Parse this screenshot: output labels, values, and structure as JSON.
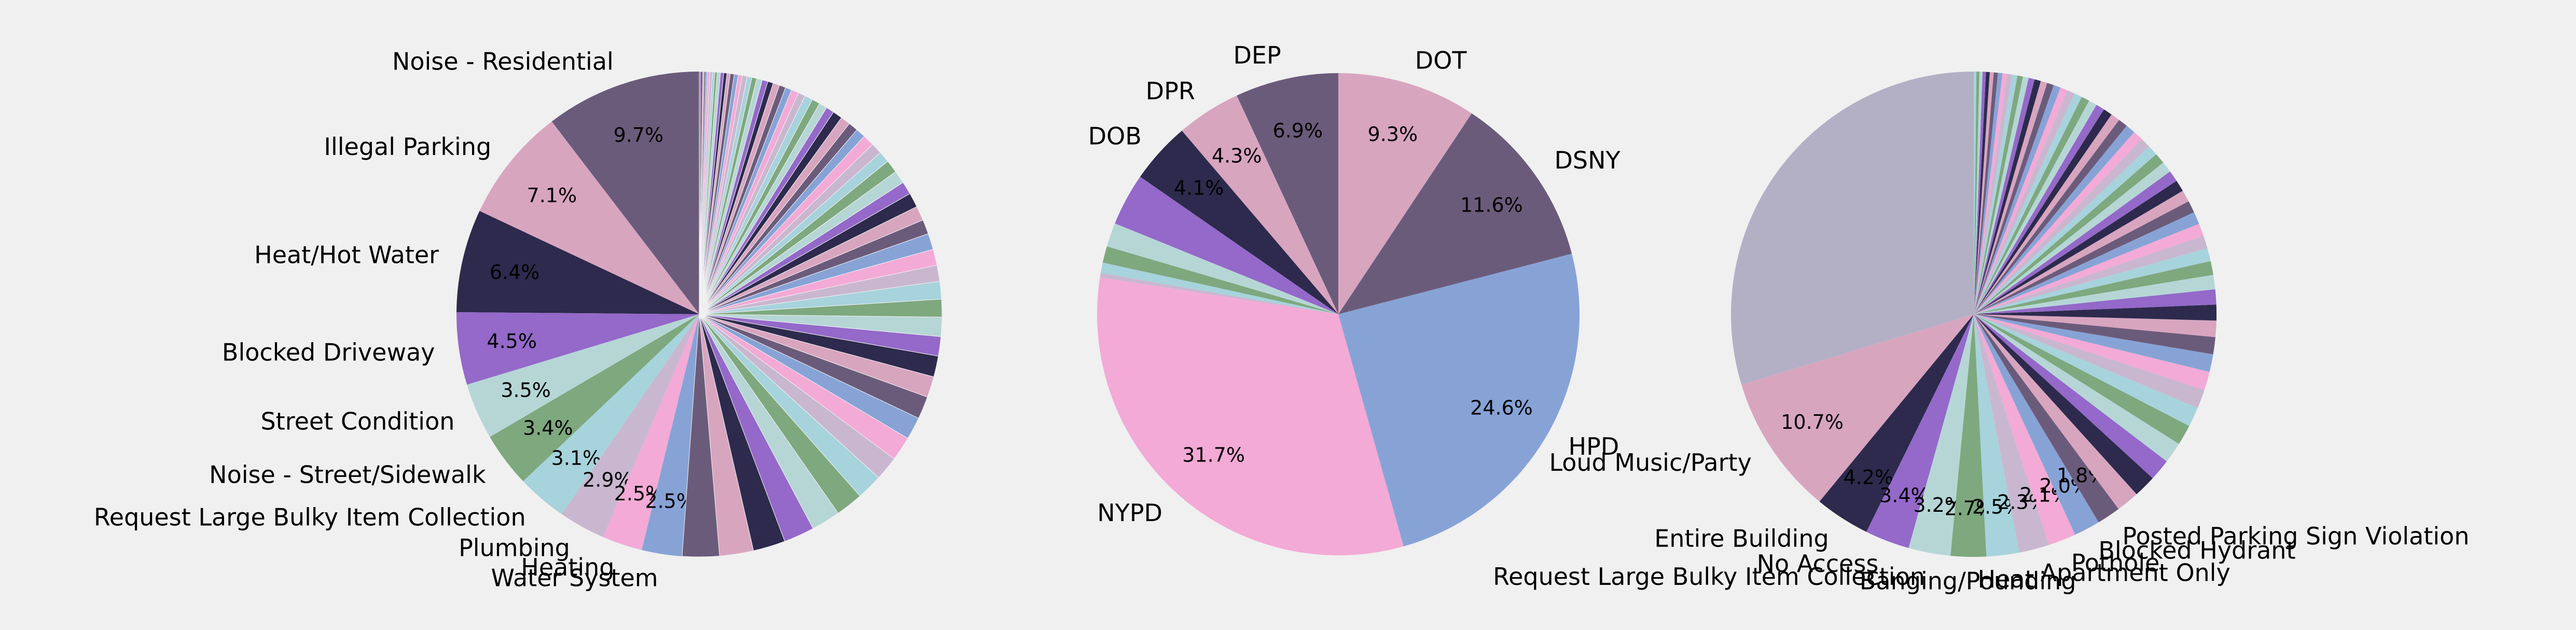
{
  "chart_data": [
    {
      "type": "pie",
      "start_angle_deg": 90,
      "direction": "counterclockwise",
      "labels": [
        "Noise - Residential",
        "Illegal Parking",
        "Heat/Hot Water",
        "Blocked Driveway",
        "Street Condition",
        "Noise - Street/Sidewalk",
        "Request Large Bulky Item Collection",
        "Plumbing",
        "Heating",
        "Water System"
      ],
      "values": [
        9.7,
        7.1,
        6.4,
        4.5,
        3.5,
        3.4,
        3.1,
        2.9,
        2.5,
        2.5
      ],
      "pct_labels": [
        "9.7%",
        "7.1%",
        "6.4%",
        "4.5%",
        "3.5%",
        "3.4%",
        "3.1%",
        "2.9%",
        "2.5%",
        "2.5%"
      ],
      "tail_values": [
        2.3,
        2.1,
        2.0,
        1.9,
        1.8,
        1.7,
        1.6,
        1.5,
        1.5,
        1.4,
        1.4,
        1.3,
        1.3,
        1.2,
        1.2,
        1.1,
        1.1,
        1.0,
        1.0,
        1.0,
        0.9,
        0.9,
        0.9,
        0.8,
        0.8,
        0.8,
        0.7,
        0.7,
        0.7,
        0.6,
        0.6,
        0.6,
        0.6,
        0.5,
        0.5,
        0.5,
        0.5,
        0.45,
        0.45,
        0.4,
        0.4,
        0.4,
        0.35,
        0.35,
        0.35,
        0.3,
        0.3,
        0.3,
        0.25,
        0.25,
        0.25,
        0.2,
        0.2,
        0.2,
        0.2,
        0.15,
        0.15,
        0.15,
        0.15,
        0.1,
        0.1,
        0.1,
        0.1,
        0.1
      ]
    },
    {
      "type": "pie",
      "start_angle_deg": 90,
      "direction": "counterclockwise",
      "labels": [
        "DEP",
        "DPR",
        "DOB",
        "",
        "",
        "",
        "",
        "",
        "NYPD",
        "HPD",
        "DSNY",
        "DOT"
      ],
      "values": [
        6.9,
        4.3,
        4.1,
        3.5,
        1.6,
        1.1,
        0.7,
        0.3,
        31.7,
        24.6,
        11.6,
        9.3
      ],
      "pct_labels": [
        "6.9%",
        "4.3%",
        "4.1%",
        "",
        "",
        "",
        "",
        "",
        "31.7%",
        "24.6%",
        "11.6%",
        "9.3%"
      ],
      "tail_values": []
    },
    {
      "type": "pie",
      "start_angle_deg": 90,
      "direction": "counterclockwise",
      "labels": [
        "Loud Music/Party",
        "Entire Building",
        "No Access",
        "Request Large Bulky Item Collection",
        "Banging/Pounding",
        "Heat",
        "Apartment Only",
        "Pothole",
        "Blocked Hydrant",
        "Posted Parking Sign Violation"
      ],
      "values": [
        10.7,
        4.2,
        3.4,
        3.2,
        2.7,
        2.5,
        2.3,
        2.1,
        2.0,
        1.8
      ],
      "pct_labels": [
        "10.7%",
        "4.2%",
        "3.4%",
        "3.2%",
        "2.7%",
        "2.5%",
        "2.3%",
        "2.1%",
        "2.0%",
        "1.8%"
      ],
      "head_values": [
        34.0
      ],
      "tail_values": [
        1.75,
        1.7,
        1.65,
        1.6,
        1.55,
        1.5,
        1.45,
        1.4,
        1.35,
        1.3,
        1.25,
        1.2,
        1.15,
        1.1,
        1.05,
        1.0,
        0.98,
        0.96,
        0.94,
        0.92,
        0.9,
        0.88,
        0.86,
        0.84,
        0.82,
        0.8,
        0.78,
        0.76,
        0.74,
        0.72,
        0.7,
        0.68,
        0.66,
        0.64,
        0.62,
        0.6,
        0.58,
        0.56,
        0.54,
        0.52,
        0.5,
        0.48,
        0.46,
        0.44,
        0.42,
        0.4,
        0.38,
        0.36,
        0.34,
        0.32,
        0.3,
        0.28,
        0.26,
        0.24,
        0.22,
        0.2
      ]
    }
  ],
  "colors": {
    "palette": [
      "#6b5b7b",
      "#d8a5bf",
      "#2d2a4d",
      "#9469c9",
      "#b6d6d6",
      "#7ea87e",
      "#a7d3dc",
      "#c9b7d0",
      "#f3aad6",
      "#87a3d6"
    ],
    "background": "#f0f0f0"
  }
}
